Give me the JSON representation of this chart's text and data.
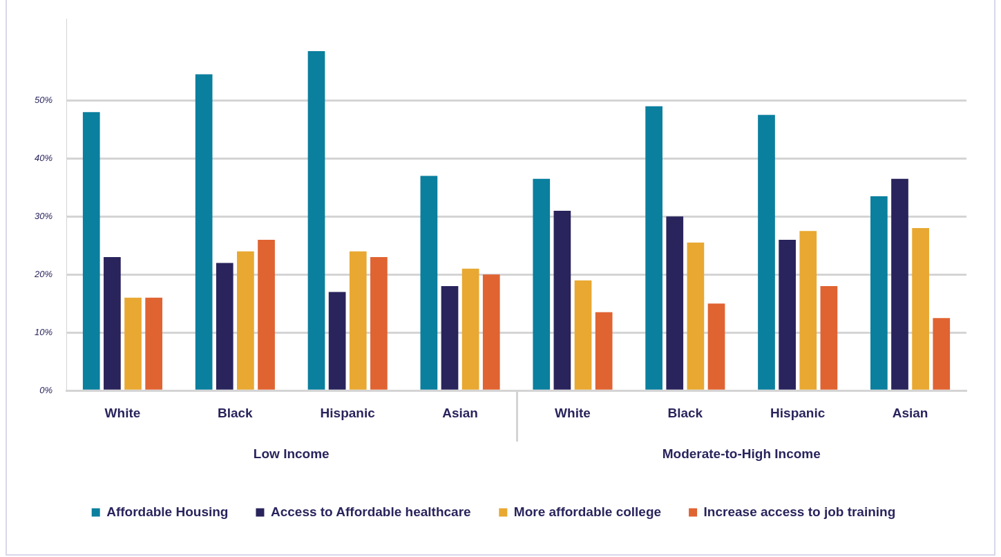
{
  "chart_data": {
    "type": "bar",
    "categories": [
      "White",
      "Black",
      "Hispanic",
      "Asian",
      "White",
      "Black",
      "Hispanic",
      "Asian"
    ],
    "series": [
      {
        "name": "Affordable Housing",
        "color": "#0b7f9e",
        "values": [
          48,
          54.5,
          58.5,
          37,
          36.5,
          49,
          47.5,
          33.5
        ]
      },
      {
        "name": "Access to Affordable healthcare",
        "color": "#29245c",
        "values": [
          23,
          22,
          17,
          18,
          31,
          30,
          26,
          36.5
        ]
      },
      {
        "name": "More affordable college",
        "color": "#e8a832",
        "values": [
          16,
          24,
          24,
          21,
          19,
          25.5,
          27.5,
          28
        ]
      },
      {
        "name": "Increase access to job training",
        "color": "#e06332",
        "values": [
          16,
          26,
          23,
          20,
          13.5,
          15,
          18,
          12.5
        ]
      }
    ],
    "annotations": [
      "Low Income",
      "Moderate-to-High Income"
    ],
    "ylim": [
      0,
      64
    ],
    "yticks": [
      {
        "value": 0,
        "label": "0%"
      },
      {
        "value": 10,
        "label": "10%"
      },
      {
        "value": 20,
        "label": "20%"
      },
      {
        "value": 30,
        "label": "30%"
      },
      {
        "value": 40,
        "label": "40%"
      },
      {
        "value": 50,
        "label": "50%"
      }
    ],
    "grid": "y",
    "legend": "bottom"
  }
}
